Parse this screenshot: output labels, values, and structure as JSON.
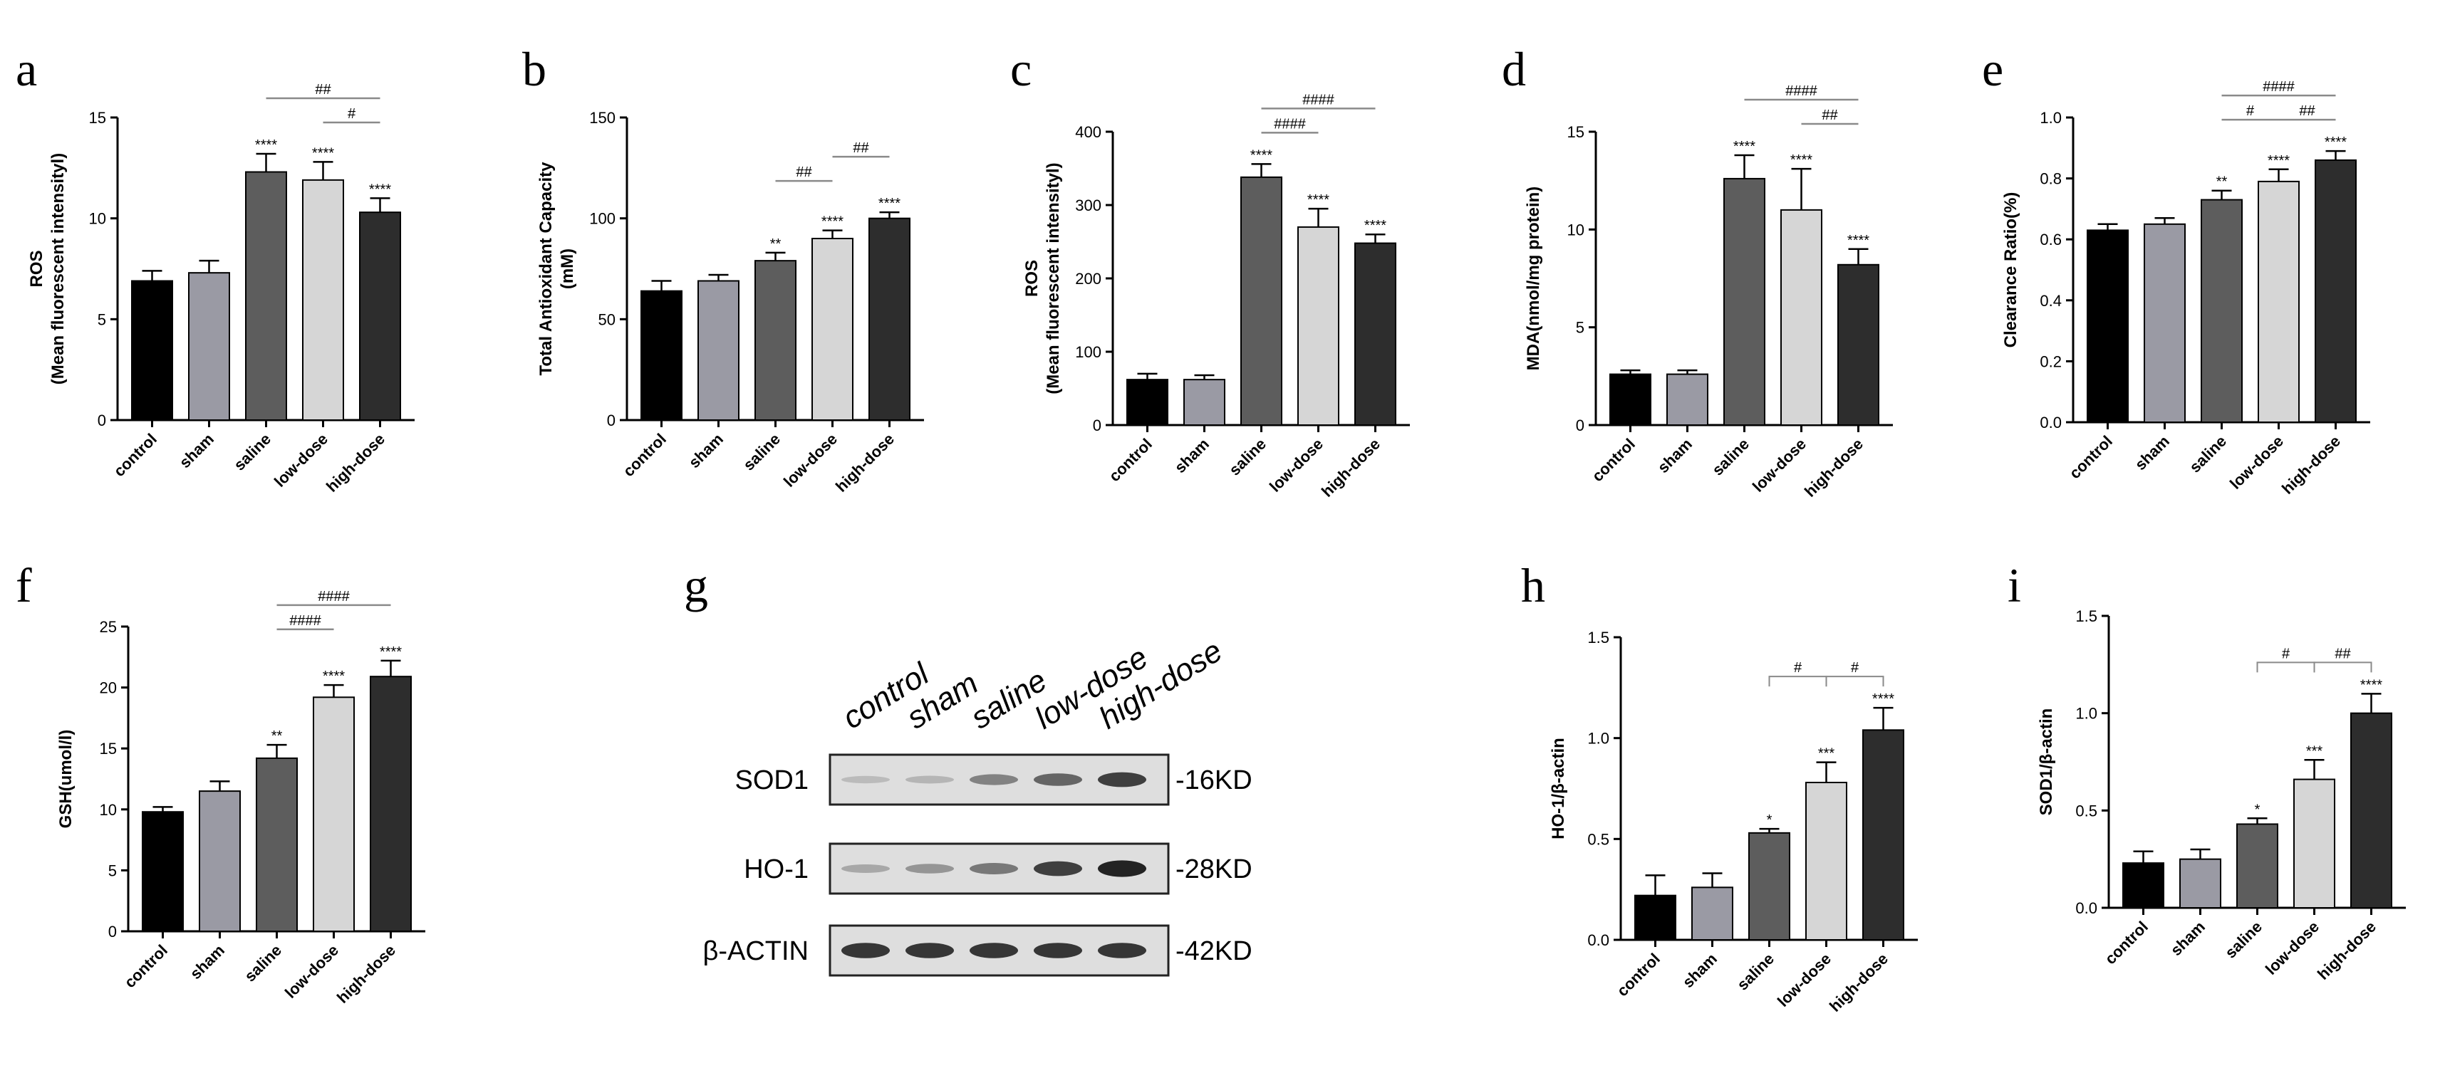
{
  "panel_letters": [
    "a",
    "b",
    "c",
    "d",
    "e",
    "f",
    "g",
    "h",
    "i"
  ],
  "colors": {
    "control": "#000000",
    "sham": "#9a9aa4",
    "saline": "#5d5d5d",
    "low-dose": "#d6d6d6",
    "high-dose": "#2d2d2d",
    "axis": "#000000",
    "bracket": "#8a8a8a"
  },
  "chart_data": [
    {
      "panel": "a",
      "type": "bar",
      "ylabel": [
        "ROS",
        "(Mean fluorescent intensityl)"
      ],
      "ylim": [
        0,
        15
      ],
      "yticks": [
        0,
        5,
        10,
        15
      ],
      "categories": [
        "control",
        "sham",
        "saline",
        "low-dose",
        "high-dose"
      ],
      "values": [
        6.9,
        7.3,
        12.3,
        11.9,
        10.3
      ],
      "errors": [
        0.5,
        0.6,
        0.9,
        0.9,
        0.7
      ],
      "sig": [
        "",
        "",
        "****",
        "****",
        "****"
      ],
      "brackets": [
        {
          "from": 2,
          "to": 4,
          "label": "##",
          "level": 2
        },
        {
          "from": 3,
          "to": 4,
          "label": "#",
          "level": 1
        }
      ]
    },
    {
      "panel": "b",
      "type": "bar",
      "ylabel": [
        "Total Antioxidant Capacity",
        "(mM)"
      ],
      "ylim": [
        0,
        150
      ],
      "yticks": [
        0,
        50,
        100,
        150
      ],
      "categories": [
        "control",
        "sham",
        "saline",
        "low-dose",
        "high-dose"
      ],
      "values": [
        64,
        69,
        79,
        90,
        100
      ],
      "errors": [
        5,
        3,
        4,
        4,
        3
      ],
      "sig": [
        "",
        "",
        "**",
        "****",
        "****"
      ],
      "brackets": [
        {
          "from": 2,
          "to": 3,
          "label": "##",
          "level": 1
        },
        {
          "from": 3,
          "to": 4,
          "label": "##",
          "level": 2
        }
      ]
    },
    {
      "panel": "c",
      "type": "bar",
      "ylabel": [
        "ROS",
        "(Mean fluorescent intensityl)"
      ],
      "ylim": [
        0,
        400
      ],
      "yticks": [
        0,
        100,
        200,
        300,
        400
      ],
      "categories": [
        "control",
        "sham",
        "saline",
        "low-dose",
        "high-dose"
      ],
      "values": [
        62,
        62,
        338,
        270,
        248
      ],
      "errors": [
        8,
        6,
        18,
        25,
        12
      ],
      "sig": [
        "",
        "",
        "****",
        "****",
        "****"
      ],
      "brackets": [
        {
          "from": 2,
          "to": 4,
          "label": "####",
          "level": 2
        },
        {
          "from": 2,
          "to": 3,
          "label": "####",
          "level": 1
        }
      ]
    },
    {
      "panel": "d",
      "type": "bar",
      "ylabel": [
        "MDA(nmol/mg protein)"
      ],
      "ylim": [
        0,
        15
      ],
      "yticks": [
        0,
        5,
        10,
        15
      ],
      "categories": [
        "control",
        "sham",
        "saline",
        "low-dose",
        "high-dose"
      ],
      "values": [
        2.6,
        2.6,
        12.6,
        11.0,
        8.2
      ],
      "errors": [
        0.2,
        0.2,
        1.2,
        2.1,
        0.8
      ],
      "sig": [
        "",
        "",
        "****",
        "****",
        "****"
      ],
      "brackets": [
        {
          "from": 2,
          "to": 4,
          "label": "####",
          "level": 2
        },
        {
          "from": 3,
          "to": 4,
          "label": "##",
          "level": 1
        }
      ]
    },
    {
      "panel": "e",
      "type": "bar",
      "ylabel": [
        "Clearance Ratio(%)"
      ],
      "ylim": [
        0,
        1.0
      ],
      "yticks": [
        "0.0",
        "0.2",
        "0.4",
        "0.6",
        "0.8",
        "1.0"
      ],
      "categories": [
        "control",
        "sham",
        "saline",
        "low-dose",
        "high-dose"
      ],
      "values": [
        0.63,
        0.65,
        0.73,
        0.79,
        0.86
      ],
      "errors": [
        0.02,
        0.02,
        0.03,
        0.04,
        0.03
      ],
      "sig": [
        "",
        "",
        "**",
        "****",
        "****"
      ],
      "brackets": [
        {
          "from": 2,
          "to": 4,
          "label": "####",
          "level": 2
        },
        {
          "from": 2,
          "to": 3,
          "label": "#",
          "level": 1
        },
        {
          "from": 3,
          "to": 4,
          "label": "##",
          "level": 1
        }
      ]
    },
    {
      "panel": "f",
      "type": "bar",
      "ylabel": [
        "GSH(umol/l)"
      ],
      "ylim": [
        0,
        25
      ],
      "yticks": [
        0,
        5,
        10,
        15,
        20,
        25
      ],
      "categories": [
        "control",
        "sham",
        "saline",
        "low-dose",
        "high-dose"
      ],
      "values": [
        9.8,
        11.5,
        14.2,
        19.2,
        20.9
      ],
      "errors": [
        0.4,
        0.8,
        1.1,
        1.0,
        1.3
      ],
      "sig": [
        "",
        "",
        "**",
        "****",
        "****"
      ],
      "brackets": [
        {
          "from": 2,
          "to": 4,
          "label": "####",
          "level": 2
        },
        {
          "from": 2,
          "to": 3,
          "label": "####",
          "level": 1
        }
      ]
    },
    {
      "panel": "h",
      "type": "bar",
      "ylabel": [
        "HO-1/β-actin"
      ],
      "ylim": [
        0,
        1.5
      ],
      "yticks": [
        "0.0",
        "0.5",
        "1.0",
        "1.5"
      ],
      "categories": [
        "control",
        "sham",
        "saline",
        "low-dose",
        "high-dose"
      ],
      "values": [
        0.22,
        0.26,
        0.53,
        0.78,
        1.04
      ],
      "errors": [
        0.1,
        0.07,
        0.02,
        0.1,
        0.11
      ],
      "sig": [
        "",
        "",
        "*",
        "***",
        "****"
      ],
      "brackets": [
        {
          "from": 2,
          "to": 3,
          "label": "#",
          "level": 1,
          "style": "drop"
        },
        {
          "from": 3,
          "to": 4,
          "label": "#",
          "level": 1,
          "style": "drop"
        }
      ]
    },
    {
      "panel": "i",
      "type": "bar",
      "ylabel": [
        "SOD1/β-actin"
      ],
      "ylim": [
        0,
        1.5
      ],
      "yticks": [
        "0.0",
        "0.5",
        "1.0",
        "1.5"
      ],
      "categories": [
        "control",
        "sham",
        "saline",
        "low-dose",
        "high-dose"
      ],
      "values": [
        0.23,
        0.25,
        0.43,
        0.66,
        1.0
      ],
      "errors": [
        0.06,
        0.05,
        0.03,
        0.1,
        0.1
      ],
      "sig": [
        "",
        "",
        "*",
        "***",
        "****"
      ],
      "brackets": [
        {
          "from": 2,
          "to": 3,
          "label": "#",
          "level": 1,
          "style": "drop"
        },
        {
          "from": 3,
          "to": 4,
          "label": "##",
          "level": 1,
          "style": "drop"
        }
      ]
    }
  ],
  "western_blot": {
    "panel": "g",
    "lanes": [
      "control",
      "sham",
      "saline",
      "low-dose",
      "high-dose"
    ],
    "rows": [
      {
        "protein": "SOD1",
        "size": "-16KD",
        "intensity": [
          0.15,
          0.18,
          0.45,
          0.6,
          0.8
        ]
      },
      {
        "protein": "HO-1",
        "size": "-28KD",
        "intensity": [
          0.25,
          0.35,
          0.5,
          0.8,
          0.95
        ]
      },
      {
        "protein": "β-ACTIN",
        "size": "-42KD",
        "intensity": [
          0.85,
          0.85,
          0.85,
          0.85,
          0.85
        ]
      }
    ]
  }
}
